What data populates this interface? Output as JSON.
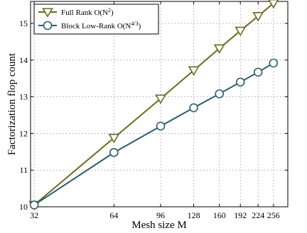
{
  "chart_data": {
    "type": "line",
    "xlabel": "Mesh size M",
    "ylabel": "Factorization flop count",
    "x_scale": "log",
    "xlim": [
      31,
      290
    ],
    "ylim": [
      10,
      15.6
    ],
    "x_ticks": [
      32,
      64,
      96,
      128,
      160,
      192,
      224,
      256
    ],
    "x_tick_labels": [
      "32",
      "64",
      "96",
      "128",
      "160",
      "192",
      "224",
      "256"
    ],
    "y_ticks": [
      10,
      11,
      12,
      13,
      14,
      15
    ],
    "y_tick_labels": [
      "10",
      "11",
      "12",
      "13",
      "14",
      "15"
    ],
    "grid": true,
    "legend_position": "top-left",
    "series": [
      {
        "name_main": "Full Rank O(N",
        "name_sup": "2",
        "name_end": ")",
        "marker": "triangle-down",
        "color": "#6b6b1f",
        "x": [
          32,
          64,
          96,
          128,
          160,
          192,
          224,
          256
        ],
        "y": [
          10.05,
          11.88,
          12.95,
          13.72,
          14.32,
          14.8,
          15.2,
          15.55
        ]
      },
      {
        "name_main": "Block Low-Rank O(N",
        "name_sup": "4/3",
        "name_end": ")",
        "marker": "circle",
        "color": "#2d5d6b",
        "x": [
          32,
          64,
          96,
          128,
          160,
          192,
          224,
          256
        ],
        "y": [
          10.05,
          11.48,
          12.2,
          12.7,
          13.08,
          13.4,
          13.67,
          13.92
        ]
      }
    ]
  }
}
